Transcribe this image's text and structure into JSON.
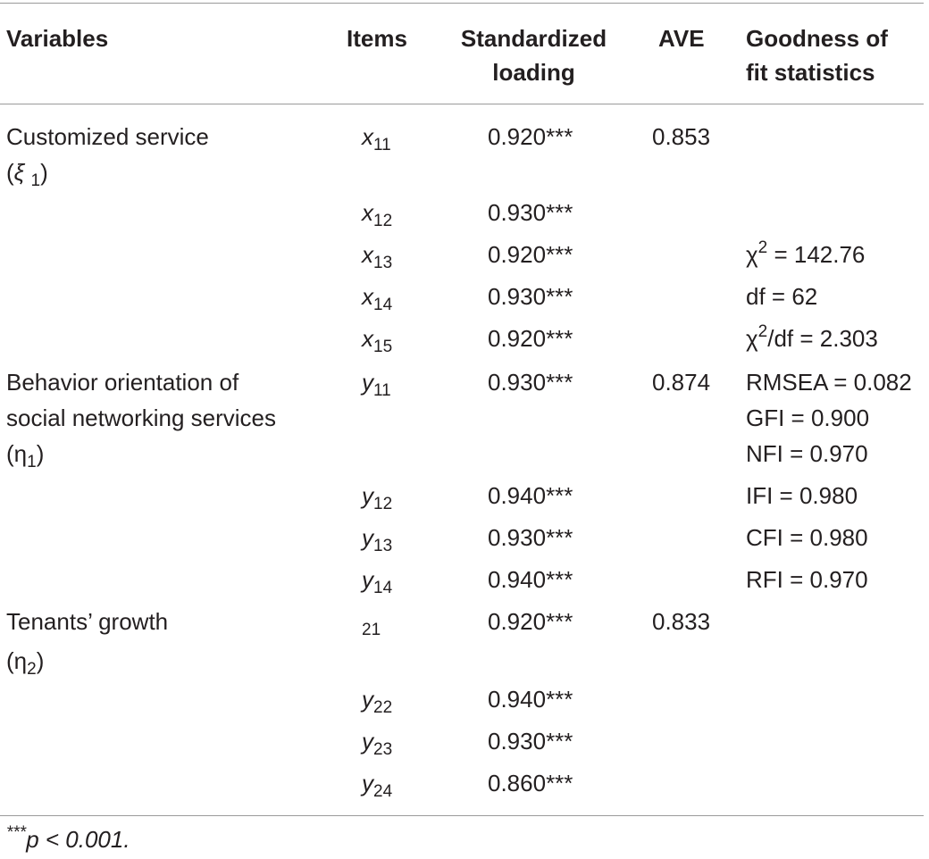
{
  "headers": {
    "variables": "Variables",
    "items": "Items",
    "loading_1": "Standardized",
    "loading_2": "loading",
    "ave": "AVE",
    "fit_1": "Goodness of",
    "fit_2": "fit statistics"
  },
  "variables": {
    "v1_line1": "Customized service",
    "v1_line2_open": "(",
    "v1_symbol": "ξ",
    "v1_sub": "1",
    "v1_close": ")",
    "v2_line1": "Behavior orientation of",
    "v2_line2": "social networking services",
    "v2_line3_open": "(η",
    "v2_sub": "1",
    "v2_close": ")",
    "v3_line1": "Tenants’ growth",
    "v3_line2_open": "(η",
    "v3_sub": "2",
    "v3_close": ")"
  },
  "rows": [
    {
      "item_var": "x",
      "item_sub": "11",
      "loading": "0.920***",
      "ave": "0.853"
    },
    {
      "item_var": "x",
      "item_sub": "12",
      "loading": "0.930***"
    },
    {
      "item_var": "x",
      "item_sub": "13",
      "loading": "0.920***"
    },
    {
      "item_var": "x",
      "item_sub": "14",
      "loading": "0.930***"
    },
    {
      "item_var": "x",
      "item_sub": "15",
      "loading": "0.920***"
    },
    {
      "item_var": "y",
      "item_sub": "11",
      "loading": "0.930***",
      "ave": "0.874"
    },
    {
      "item_var": "y",
      "item_sub": "12",
      "loading": "0.940***"
    },
    {
      "item_var": "y",
      "item_sub": "13",
      "loading": "0.930***"
    },
    {
      "item_var": "y",
      "item_sub": "14",
      "loading": "0.940***"
    },
    {
      "item_var": "",
      "item_sub": "21",
      "loading": "0.920***",
      "ave": "0.833"
    },
    {
      "item_var": "y",
      "item_sub": "22",
      "loading": "0.940***"
    },
    {
      "item_var": "y",
      "item_sub": "23",
      "loading": "0.930***"
    },
    {
      "item_var": "y",
      "item_sub": "24",
      "loading": "0.860***"
    }
  ],
  "fit": {
    "chi_sym": "χ",
    "chi_sup": "2",
    "chi_val": " = 142.76",
    "df": "df = 62",
    "chidf_sym": "χ",
    "chidf_sup": "2",
    "chidf_val": "/df = 2.303",
    "rmsea": "RMSEA = 0.082",
    "gfi": "GFI = 0.900",
    "nfi": "NFI = 0.970",
    "ifi": "IFI = 0.980",
    "cfi": "CFI = 0.980",
    "rfi": "RFI = 0.970"
  },
  "footnote": {
    "stars": "***",
    "text": "p < 0.001."
  }
}
